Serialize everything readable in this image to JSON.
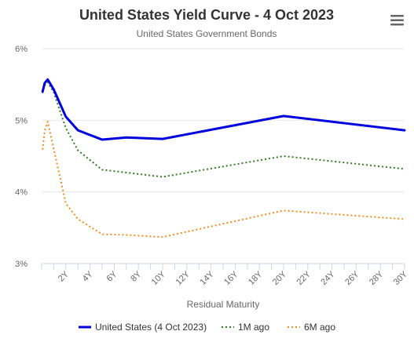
{
  "menu": {
    "icon": "hamburger-menu-icon"
  },
  "chart_data": {
    "type": "line",
    "title": "United States Yield Curve - 4 Oct 2023",
    "subtitle": "United States Government Bonds",
    "xlabel": "Residual Maturity",
    "ylabel": "",
    "xlim": [
      0,
      30
    ],
    "ylim": [
      3,
      6
    ],
    "x_ticks": [
      2,
      4,
      6,
      8,
      10,
      12,
      14,
      16,
      18,
      20,
      22,
      24,
      26,
      28,
      30
    ],
    "x_tick_labels": [
      "2Y",
      "4Y",
      "6Y",
      "8Y",
      "10Y",
      "12Y",
      "14Y",
      "16Y",
      "18Y",
      "20Y",
      "22Y",
      "24Y",
      "26Y",
      "28Y",
      "30Y"
    ],
    "y_ticks": [
      3,
      4,
      5,
      6
    ],
    "y_tick_labels": [
      "3%",
      "4%",
      "5%",
      "6%"
    ],
    "grid": true,
    "legend_position": "bottom",
    "series": [
      {
        "name": "United States (4 Oct 2023)",
        "color": "#0000dd",
        "style": "solid",
        "x": [
          0.08,
          0.25,
          0.5,
          1,
          2,
          3,
          5,
          7,
          10,
          20,
          30
        ],
        "y": [
          5.4,
          5.52,
          5.57,
          5.43,
          5.05,
          4.86,
          4.73,
          4.76,
          4.74,
          5.06,
          4.86
        ]
      },
      {
        "name": "1M ago",
        "color": "#2e7d1e",
        "style": "dotted",
        "x": [
          0.08,
          0.25,
          0.5,
          1,
          2,
          3,
          5,
          7,
          10,
          20,
          30
        ],
        "y": [
          5.38,
          5.49,
          5.53,
          5.39,
          4.89,
          4.58,
          4.31,
          4.27,
          4.21,
          4.5,
          4.32
        ]
      },
      {
        "name": "6M ago",
        "color": "#f28c1c",
        "style": "dotted",
        "x": [
          0.08,
          0.25,
          0.5,
          1,
          2,
          3,
          5,
          7,
          10,
          20,
          30
        ],
        "y": [
          4.59,
          4.85,
          4.98,
          4.6,
          3.84,
          3.62,
          3.41,
          3.4,
          3.37,
          3.74,
          3.62
        ]
      }
    ]
  }
}
